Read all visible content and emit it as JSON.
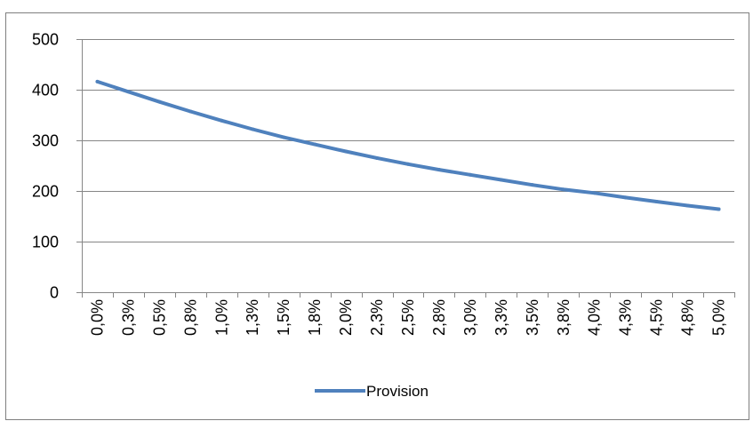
{
  "chart_data": {
    "type": "line",
    "categories": [
      "0,0%",
      "0,3%",
      "0,5%",
      "0,8%",
      "1,0%",
      "1,3%",
      "1,5%",
      "1,8%",
      "2,0%",
      "2,3%",
      "2,5%",
      "2,8%",
      "3,0%",
      "3,3%",
      "3,5%",
      "3,8%",
      "4,0%",
      "4,3%",
      "4,5%",
      "4,8%",
      "5,0%"
    ],
    "series": [
      {
        "name": "Provision",
        "color": "#4f81bd",
        "values": [
          416,
          396,
          376,
          357,
          339,
          322,
          306,
          292,
          278,
          265,
          253,
          242,
          232,
          222,
          212,
          203,
          196,
          187,
          179,
          171,
          164
        ]
      }
    ],
    "y_ticks": [
      "0",
      "100",
      "200",
      "300",
      "400",
      "500"
    ],
    "ylim": [
      0,
      500
    ],
    "grid": "horizontal",
    "legend": "bottom"
  }
}
